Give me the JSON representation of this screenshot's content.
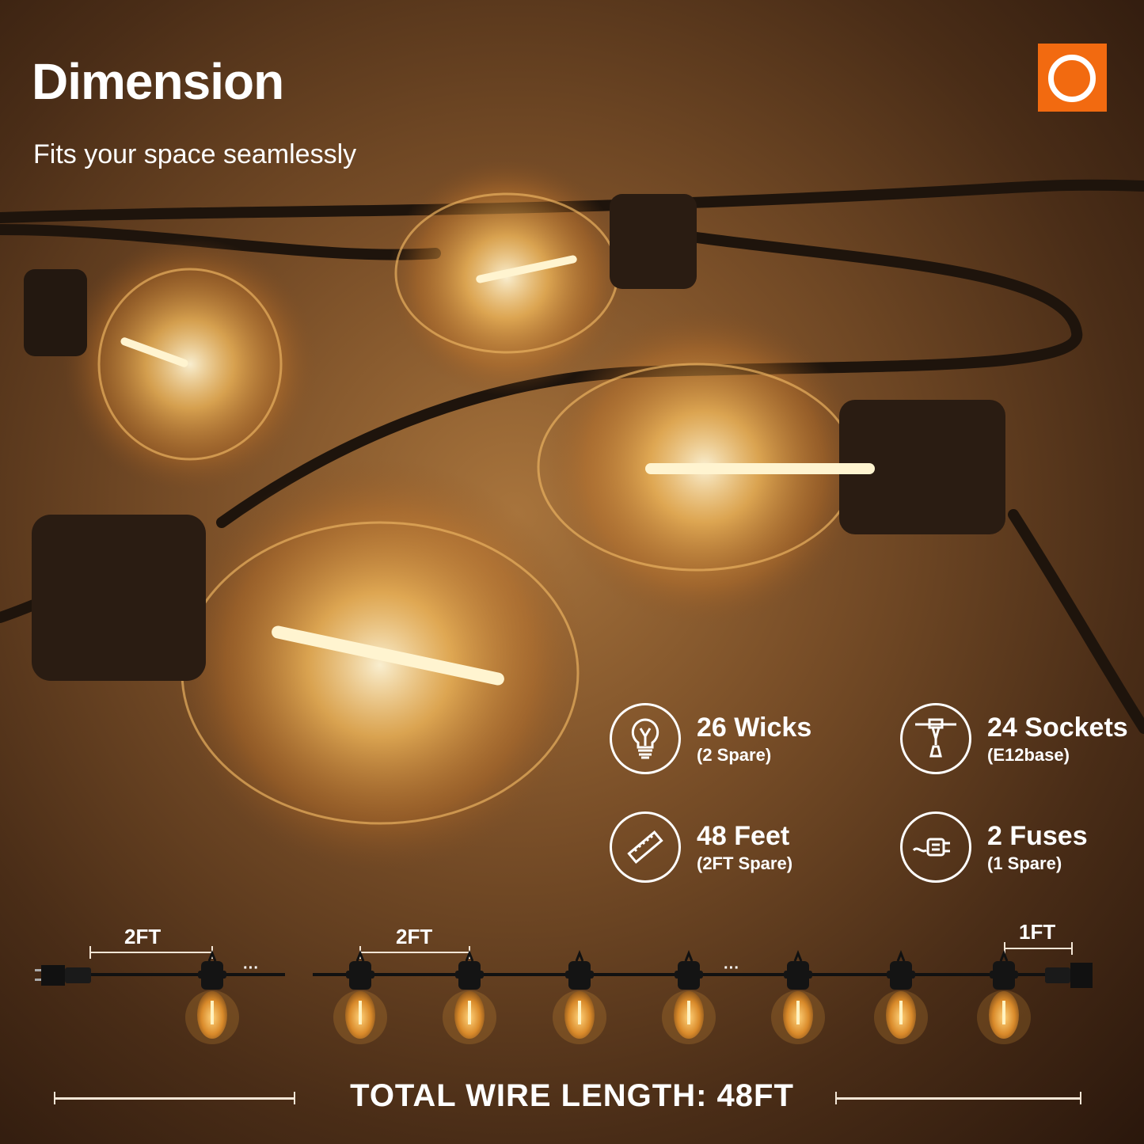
{
  "header": {
    "title": "Dimension",
    "subtitle": "Fits your space seamlessly"
  },
  "brand": {
    "logo_color": "#f26a10"
  },
  "specs": [
    {
      "icon": "bulb-icon",
      "main": "26 Wicks",
      "sub": "(2 Spare)"
    },
    {
      "icon": "socket-icon",
      "main": "24 Sockets",
      "sub": "(E12base)"
    },
    {
      "icon": "ruler-icon",
      "main": "48 Feet",
      "sub": "(2FT Spare)"
    },
    {
      "icon": "plug-icon",
      "main": "2 Fuses",
      "sub": "(1 Spare)"
    }
  ],
  "diagram": {
    "lead_label": "2FT",
    "spacing_label": "2FT",
    "tail_label": "1FT",
    "ellipsis": "···",
    "total_label": "TOTAL WIRE LENGTH: 48FT"
  }
}
